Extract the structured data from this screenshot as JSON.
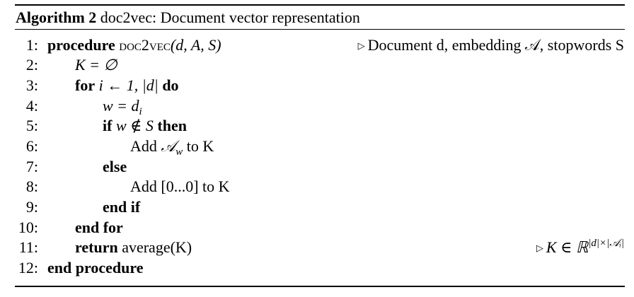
{
  "caption": {
    "label": "Algorithm 2",
    "title": "doc2vec: Document vector representation"
  },
  "lines": [
    {
      "num": "1:",
      "proc_kw": "procedure",
      "proc_name": "doc2vec",
      "args": "(d, A, S)",
      "comment": "Document d, embedding 𝒜, stopwords S"
    },
    {
      "num": "2:",
      "text": "K = ∅"
    },
    {
      "num": "3:",
      "kw": "for",
      "expr": "i ← 1, |d|",
      "kw2": "do"
    },
    {
      "num": "4:",
      "text": "w = d",
      "sub": "i"
    },
    {
      "num": "5:",
      "kw": "if",
      "expr": "w ∉ S",
      "kw2": "then"
    },
    {
      "num": "6:",
      "text_pre": "Add ",
      "cal": "𝒜",
      "sub": "w",
      "text_post": " to K"
    },
    {
      "num": "7:",
      "kw": "else"
    },
    {
      "num": "8:",
      "text": "Add [0...0] to K"
    },
    {
      "num": "9:",
      "kw": "end if"
    },
    {
      "num": "10:",
      "kw": "end for"
    },
    {
      "num": "11:",
      "kw": "return",
      "text": "average(K)",
      "comment": "K ∈ ℝ",
      "sup": "|d|×|𝒜ᵢ|"
    },
    {
      "num": "12:",
      "kw": "end procedure"
    }
  ]
}
